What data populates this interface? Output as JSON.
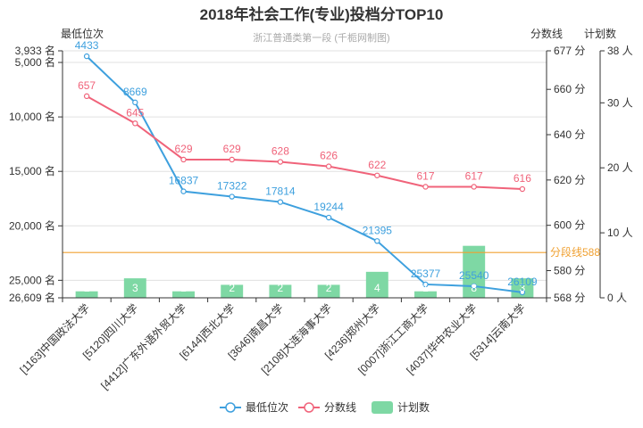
{
  "chart_data": {
    "type": "bar-line-combo",
    "title": "2018年社会工作(专业)投档分TOP10",
    "subtitle": "浙江普通类第一段 (千栀网制图)",
    "categories": [
      "[1163]中国政法大学",
      "[5120]四川大学",
      "[4412]广东外语外贸大学",
      "[6144]西北大学",
      "[3646]南昌大学",
      "[2108]大连海事大学",
      "[4236]郑州大学",
      "[0007]浙江工商大学",
      "[4037]华中农业大学",
      "[5314]云南大学"
    ],
    "series": [
      {
        "name": "最低位次",
        "type": "line",
        "color": "#3ea0de",
        "axis": "left",
        "values": [
          4433,
          8669,
          16837,
          17322,
          17814,
          19244,
          21395,
          25377,
          25540,
          26109
        ]
      },
      {
        "name": "分数线",
        "type": "line",
        "color": "#f0637a",
        "axis": "right1",
        "values": [
          657,
          645,
          629,
          629,
          628,
          626,
          622,
          617,
          617,
          616
        ]
      },
      {
        "name": "计划数",
        "type": "bar",
        "color": "#7ed8a4",
        "axis": "right2",
        "values": [
          1,
          3,
          1,
          2,
          2,
          2,
          4,
          1,
          8,
          3
        ]
      }
    ],
    "axes": {
      "left": {
        "name": "最低位次",
        "inverse": true,
        "min": 3933,
        "max": 26609,
        "ticks": [
          {
            "v": 3933,
            "label": "3,933 名"
          },
          {
            "v": 5000,
            "label": "5,000 名"
          },
          {
            "v": 10000,
            "label": "10,000 名"
          },
          {
            "v": 15000,
            "label": "15,000 名"
          },
          {
            "v": 20000,
            "label": "20,000 名"
          },
          {
            "v": 25000,
            "label": "25,000 名"
          },
          {
            "v": 26609,
            "label": "26,609 名"
          }
        ]
      },
      "right1": {
        "name": "分数线",
        "min": 568,
        "max": 677,
        "ticks": [
          {
            "v": 568,
            "label": "568 分"
          },
          {
            "v": 580,
            "label": "580 分"
          },
          {
            "v": 600,
            "label": "600 分"
          },
          {
            "v": 620,
            "label": "620 分"
          },
          {
            "v": 640,
            "label": "640 分"
          },
          {
            "v": 660,
            "label": "660 分"
          },
          {
            "v": 677,
            "label": "677 分"
          }
        ]
      },
      "right2": {
        "name": "计划数",
        "min": 0,
        "max": 38,
        "ticks": [
          {
            "v": 0,
            "label": "0 人"
          },
          {
            "v": 10,
            "label": "10 人"
          },
          {
            "v": 20,
            "label": "20 人"
          },
          {
            "v": 30,
            "label": "30 人"
          },
          {
            "v": 38,
            "label": "38 人"
          }
        ]
      }
    },
    "markline": {
      "value": 588,
      "label": "分段线588",
      "color": "#f0a030",
      "axis": "right1"
    },
    "legend": [
      "最低位次",
      "分数线",
      "计划数"
    ],
    "legend_position": "bottom-center",
    "grid": true
  }
}
